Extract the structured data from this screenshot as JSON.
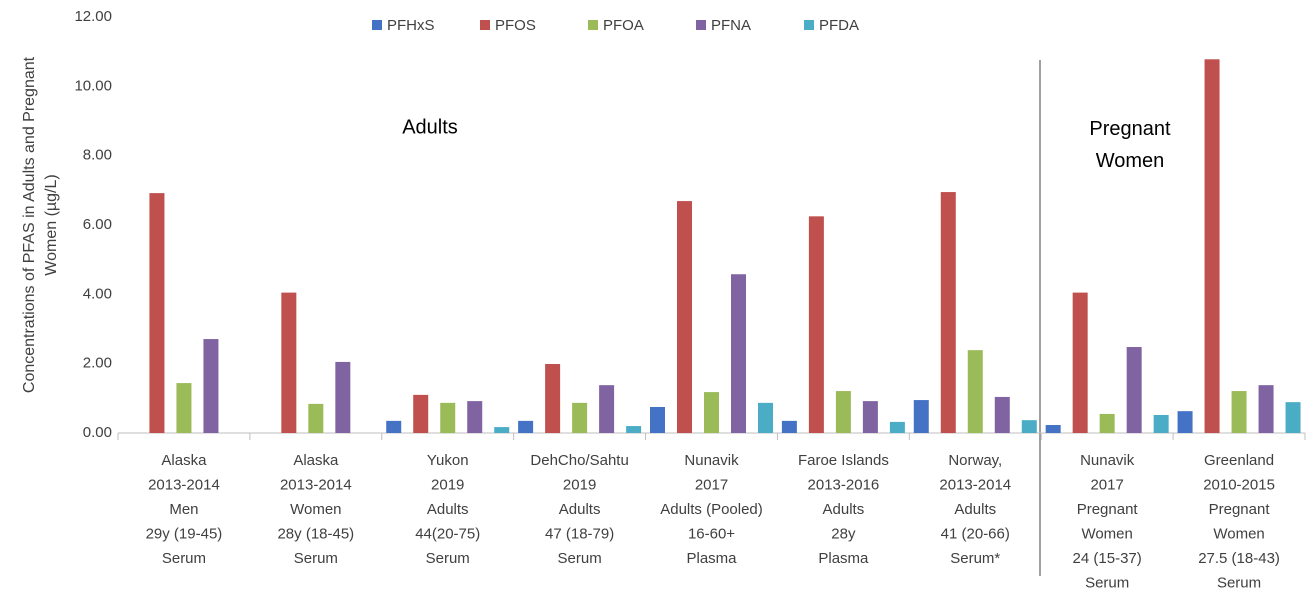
{
  "chart_data": {
    "type": "bar",
    "y_label": [
      "Concentrations of PFAS in Adults and Pregnant",
      "Women (µg/L)"
    ],
    "annotations": [
      "Adults",
      "Pregnant Women"
    ],
    "categories": [
      [
        "Alaska",
        "2013-2014",
        "Men",
        "29y (19-45)",
        "Serum"
      ],
      [
        "Alaska",
        "2013-2014",
        "Women",
        "28y (18-45)",
        "Serum"
      ],
      [
        "Yukon",
        "2019",
        "Adults",
        "44(20-75)",
        "Serum"
      ],
      [
        "DehCho/Sahtu",
        "2019",
        "Adults",
        "47 (18-79)",
        "Serum"
      ],
      [
        "Nunavik",
        "2017",
        "Adults (Pooled)",
        "16-60+",
        "Plasma"
      ],
      [
        "Faroe Islands",
        "2013-2016",
        "Adults",
        "28y",
        "Plasma"
      ],
      [
        "Norway,",
        "2013-2014",
        "Adults",
        "41 (20-66)",
        "Serum*"
      ],
      [
        "Nunavik",
        "2017",
        "Pregnant",
        "Women",
        "24 (15-37)",
        "Serum"
      ],
      [
        "Greenland",
        "2010-2015",
        "Pregnant",
        "Women",
        "27.5 (18-43)",
        "Serum"
      ]
    ],
    "series": [
      {
        "name": "PFHxS",
        "color": "#4472c4",
        "values": [
          null,
          null,
          0.35,
          0.35,
          0.75,
          0.35,
          0.95,
          0.23,
          0.63
        ]
      },
      {
        "name": "PFOS",
        "color": "#c0504d",
        "values": [
          6.92,
          4.05,
          1.1,
          1.99,
          6.69,
          6.25,
          6.95,
          4.05,
          10.78
        ]
      },
      {
        "name": "PFOA",
        "color": "#9bbb59",
        "values": [
          1.44,
          0.84,
          0.87,
          0.87,
          1.18,
          1.21,
          2.39,
          0.55,
          1.21
        ]
      },
      {
        "name": "PFNA",
        "color": "#8064a2",
        "values": [
          2.71,
          2.05,
          0.92,
          1.38,
          4.58,
          0.92,
          1.04,
          2.48,
          1.38
        ]
      },
      {
        "name": "PFDA",
        "color": "#4bacc6",
        "values": [
          null,
          null,
          0.17,
          0.2,
          0.87,
          0.32,
          0.37,
          0.52,
          0.89
        ]
      }
    ],
    "ylim": [
      0,
      12
    ],
    "yticks": [
      {
        "value": 0,
        "label": "0.00"
      },
      {
        "value": 2,
        "label": "2.00"
      },
      {
        "value": 4,
        "label": "4.00"
      },
      {
        "value": 6,
        "label": "6.00"
      },
      {
        "value": 8,
        "label": "8.00"
      },
      {
        "value": 10,
        "label": "10.00"
      },
      {
        "value": 12,
        "label": "12.00"
      }
    ],
    "grid": false
  }
}
